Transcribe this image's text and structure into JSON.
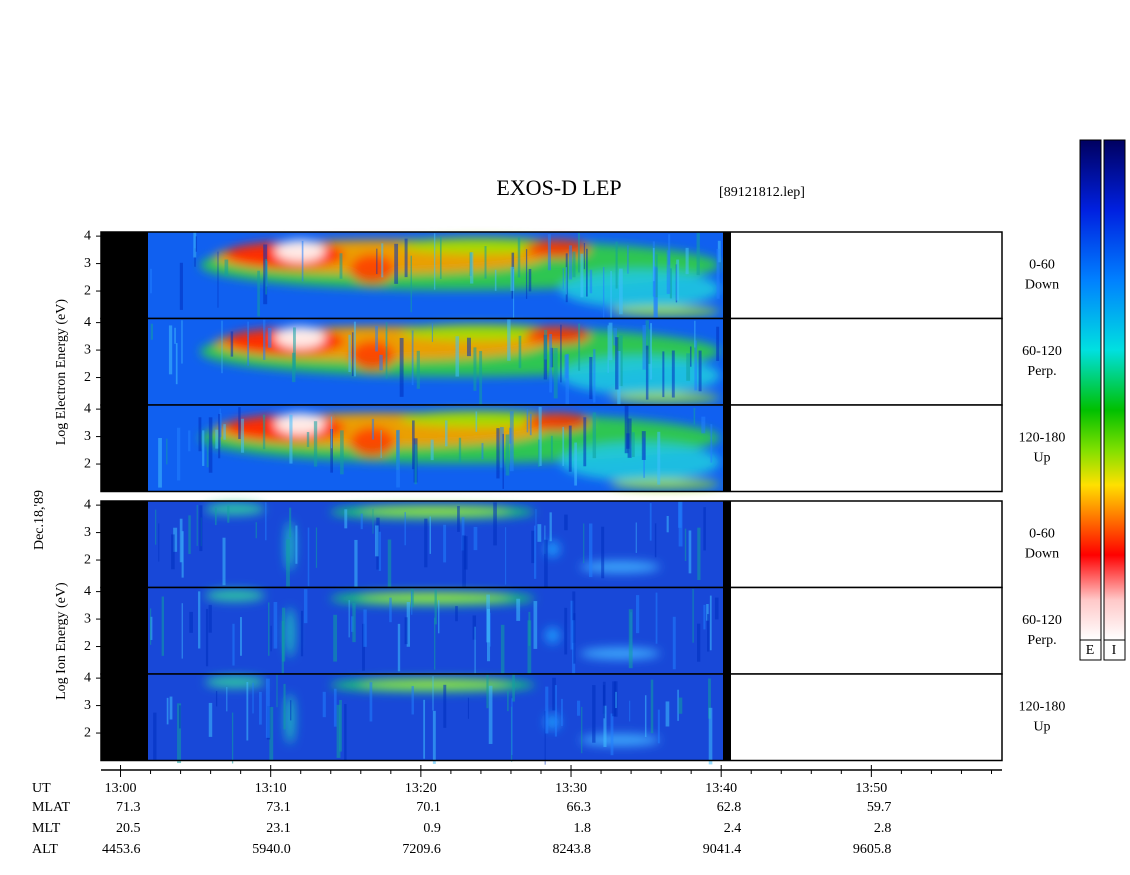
{
  "chart_data": {
    "type": "spectrogram",
    "title": "EXOS-D LEP",
    "subtitle": "[89121812.lep]",
    "date_label": "Dec.18,'89",
    "xlim": [
      778.7,
      838.7
    ],
    "xticks": [
      {
        "value": 780,
        "label": "13:00"
      },
      {
        "value": 790,
        "label": "13:10"
      },
      {
        "value": 800,
        "label": "13:20"
      },
      {
        "value": 810,
        "label": "13:30"
      },
      {
        "value": 820,
        "label": "13:40"
      },
      {
        "value": 830,
        "label": "13:50"
      }
    ],
    "minor_xticks": [
      782,
      784,
      786,
      788,
      792,
      794,
      796,
      798,
      802,
      804,
      806,
      808,
      812,
      814,
      816,
      818,
      822,
      824,
      826,
      828,
      832,
      834,
      836,
      838
    ],
    "ylim": [
      1,
      4.15
    ],
    "yticks": [
      2,
      3,
      4
    ],
    "groups": [
      {
        "ylabel": "Log Electron Energy (eV)",
        "panels": [
          {
            "angle": "0-60",
            "direction": "Down"
          },
          {
            "angle": "60-120",
            "direction": "Perp."
          },
          {
            "angle": "120-180",
            "direction": "Up"
          }
        ]
      },
      {
        "ylabel": "Log Ion Energy (eV)",
        "panels": [
          {
            "angle": "0-60",
            "direction": "Down"
          },
          {
            "angle": "60-120",
            "direction": "Perp."
          },
          {
            "angle": "120-180",
            "direction": "Up"
          }
        ]
      }
    ],
    "ephemeris": {
      "time_label": "UT",
      "rows": [
        {
          "label": "MLAT",
          "values": [
            "71.3",
            "73.1",
            "70.1",
            "66.3",
            "62.8",
            "59.7"
          ]
        },
        {
          "label": "MLT",
          "values": [
            "20.5",
            "23.1",
            "0.9",
            "1.8",
            "2.4",
            "2.8"
          ]
        },
        {
          "label": "ALT",
          "values": [
            "4453.6",
            "5940.0",
            "7209.6",
            "8243.8",
            "9041.4",
            "9605.8"
          ]
        }
      ]
    },
    "colorbar_labels": [
      "E",
      "I"
    ]
  }
}
